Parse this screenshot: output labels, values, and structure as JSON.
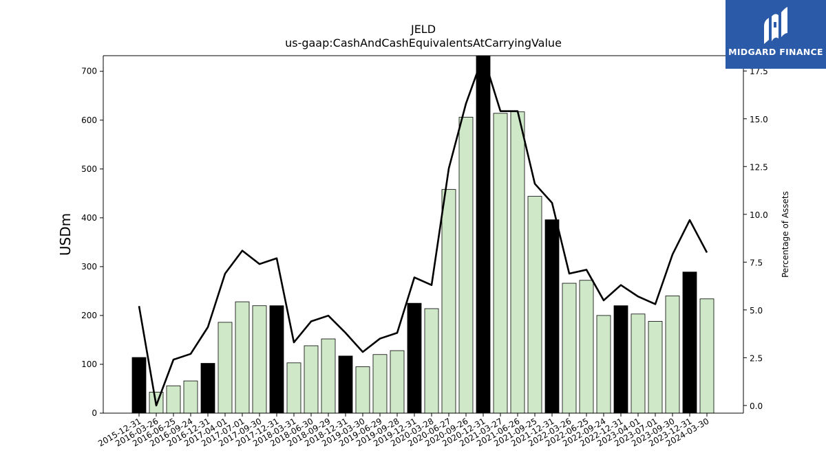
{
  "logo": {
    "text": "MIDGARD FINANCE"
  },
  "chart_data": {
    "type": "bar",
    "title": "JELD",
    "subtitle": "us-gaap:CashAndCashEquivalentsAtCarryingValue",
    "ylabel": "USDm",
    "y2label": "Percentage of Assets",
    "ylim": [
      0,
      732
    ],
    "y2lim": [
      -0.4,
      18.3
    ],
    "yticks": [
      0,
      100,
      200,
      300,
      400,
      500,
      600,
      700
    ],
    "y2ticks": [
      0.0,
      2.5,
      5.0,
      7.5,
      10.0,
      12.5,
      15.0,
      17.5
    ],
    "y2tick_labels": [
      "0.0",
      "2.5",
      "5.0",
      "7.5",
      "10.0",
      "12.5",
      "15.0",
      "17.5"
    ],
    "categories": [
      "2015-12-31",
      "2016-03-26",
      "2016-06-25",
      "2016-09-24",
      "2016-12-31",
      "2017-04-01",
      "2017-07-01",
      "2017-09-30",
      "2017-12-31",
      "2018-03-31",
      "2018-06-30",
      "2018-09-29",
      "2018-12-31",
      "2019-03-30",
      "2019-06-29",
      "2019-09-28",
      "2019-12-31",
      "2020-03-28",
      "2020-06-27",
      "2020-09-26",
      "2020-12-31",
      "2021-03-27",
      "2021-06-26",
      "2021-09-25",
      "2021-12-31",
      "2022-03-26",
      "2022-06-25",
      "2022-09-24",
      "2022-12-31",
      "2023-04-01",
      "2023-07-01",
      "2023-09-30",
      "2023-12-31",
      "2024-03-30"
    ],
    "values": [
      114,
      43,
      56,
      66,
      102,
      186,
      228,
      220,
      220,
      103,
      138,
      152,
      117,
      95,
      120,
      128,
      225,
      214,
      458,
      606,
      740,
      614,
      617,
      444,
      396,
      266,
      272,
      200,
      220,
      203,
      188,
      240,
      289,
      234
    ],
    "annual": [
      true,
      false,
      false,
      false,
      true,
      false,
      false,
      false,
      true,
      false,
      false,
      false,
      true,
      false,
      false,
      false,
      true,
      false,
      false,
      false,
      true,
      false,
      false,
      false,
      true,
      false,
      false,
      false,
      true,
      false,
      false,
      false,
      true,
      false
    ],
    "pct_of_assets": [
      5.2,
      0.0,
      2.4,
      2.7,
      4.1,
      6.9,
      8.1,
      7.4,
      7.7,
      3.3,
      4.4,
      4.7,
      3.8,
      2.8,
      3.5,
      3.8,
      6.7,
      6.3,
      12.4,
      15.8,
      18.3,
      15.4,
      15.4,
      11.6,
      10.6,
      6.9,
      7.1,
      5.5,
      6.3,
      5.7,
      5.3,
      7.9,
      9.7,
      8.0
    ],
    "colors": {
      "annual": "#000000",
      "quarterly": "#cfe8c8",
      "line": "#000000"
    },
    "grid": false,
    "legend": "none"
  }
}
